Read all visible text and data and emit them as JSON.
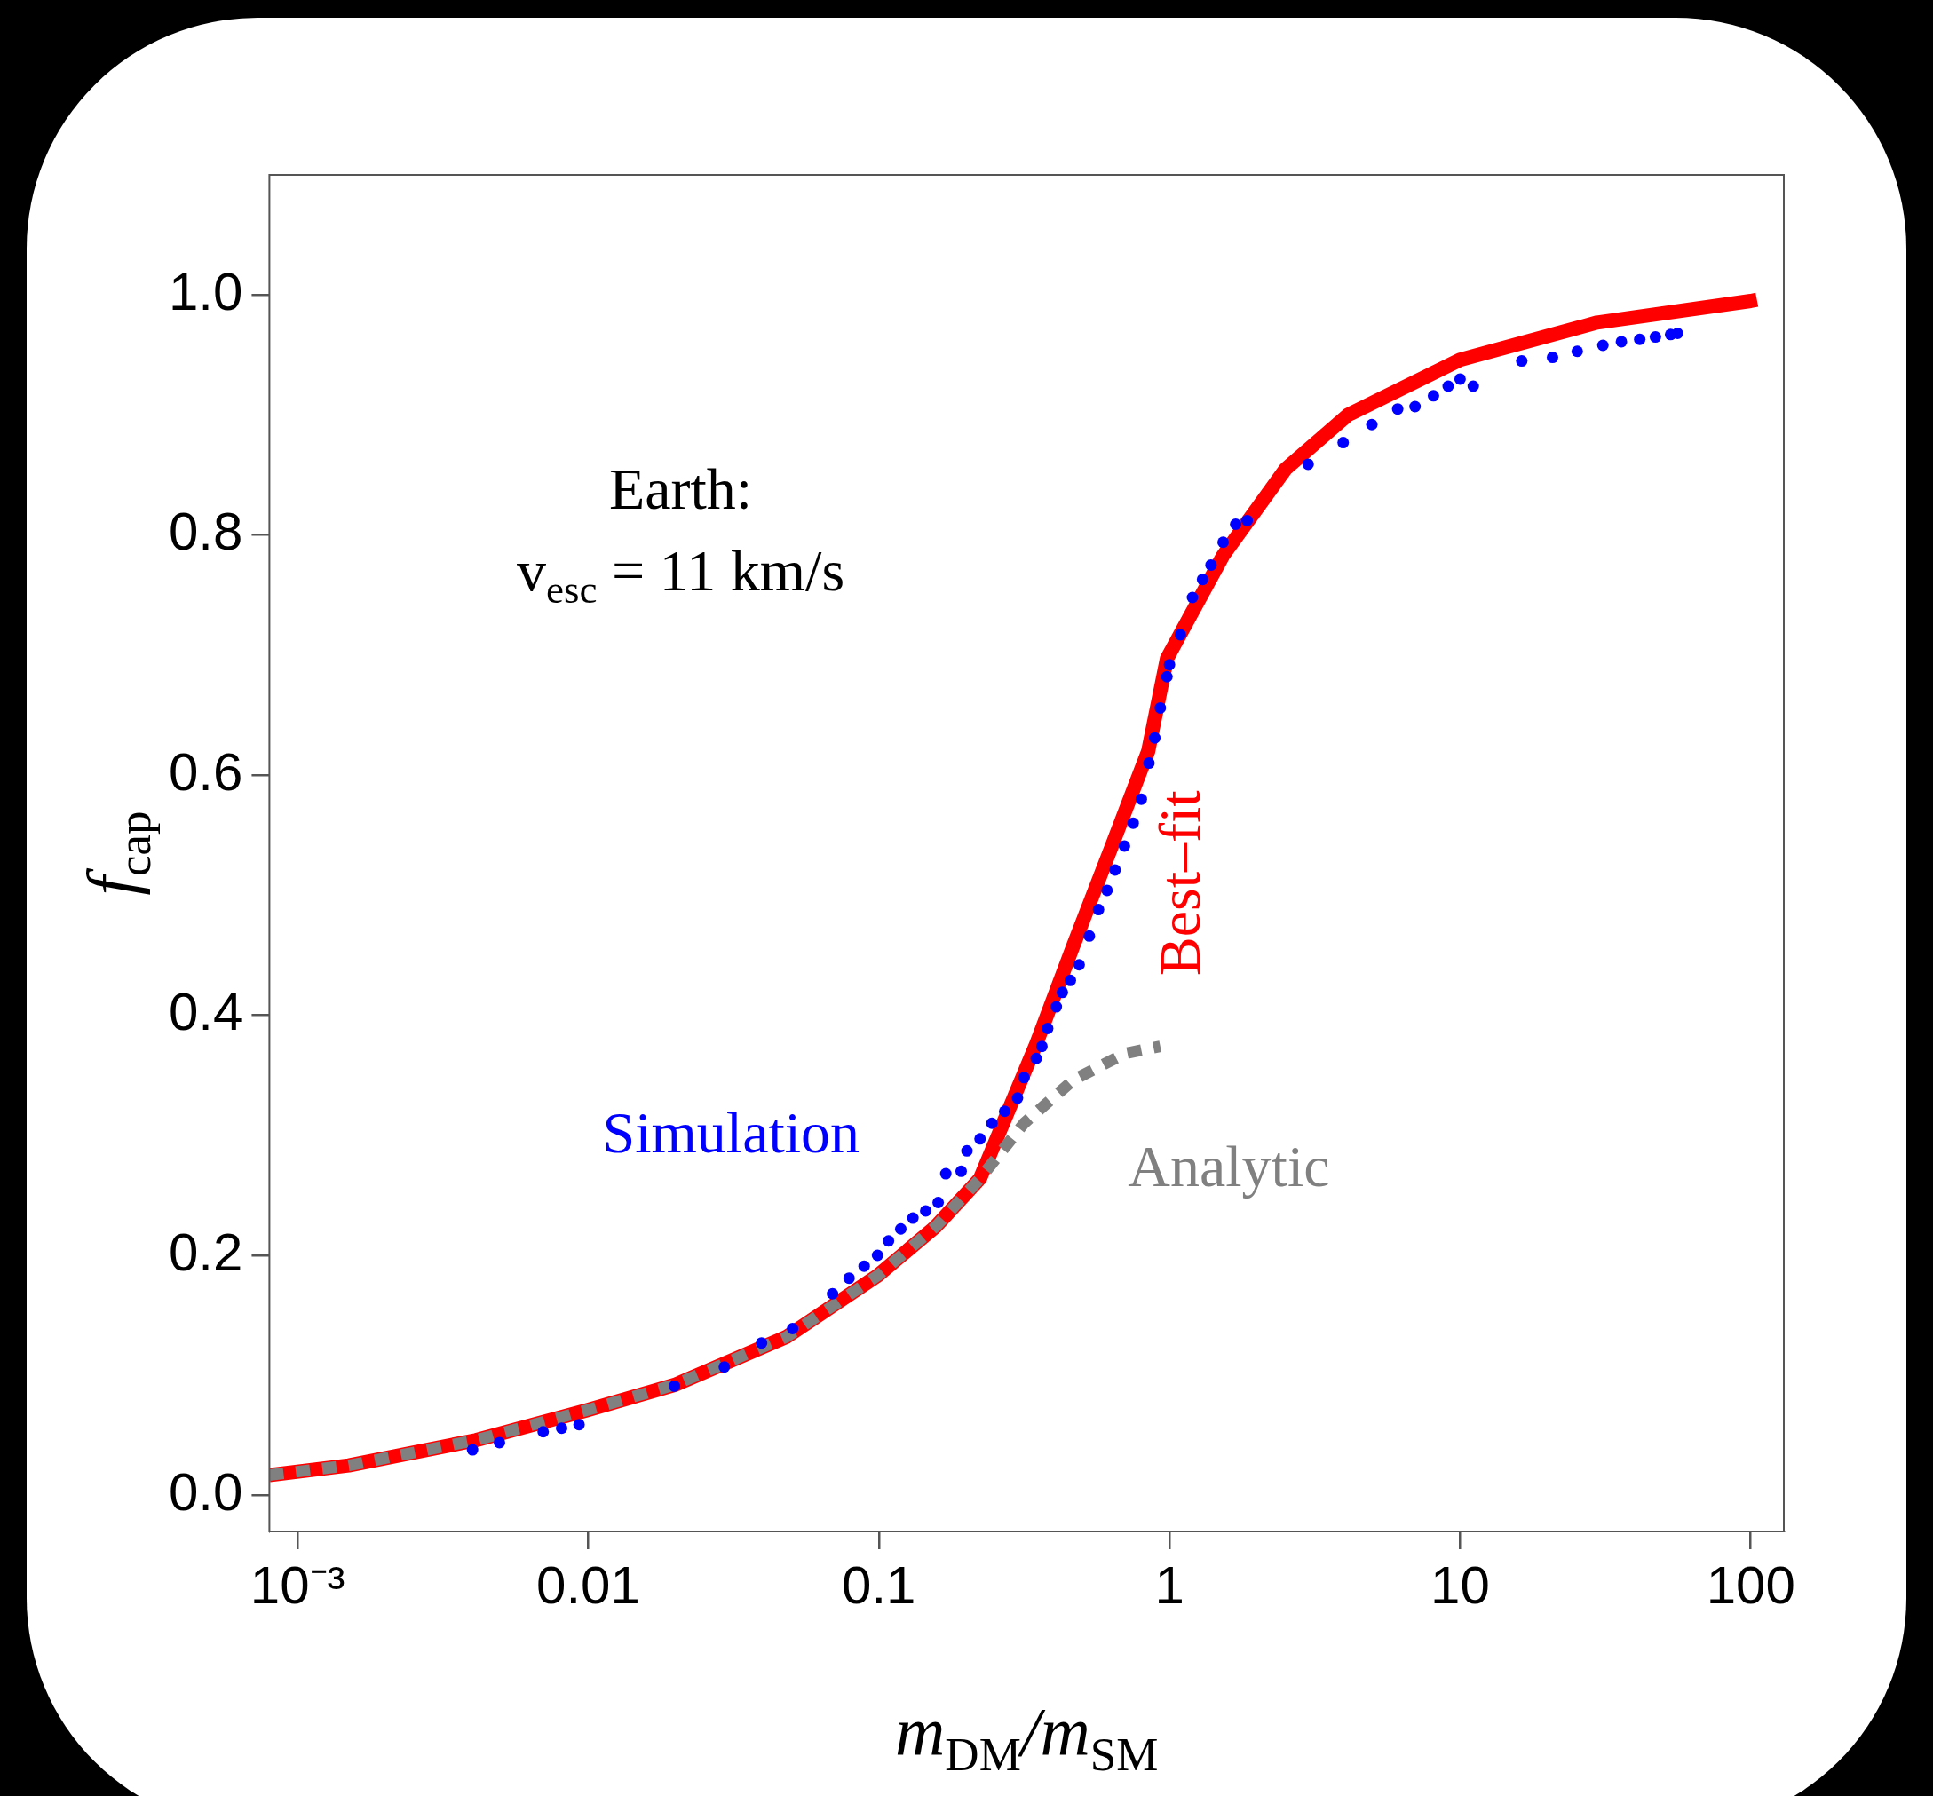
{
  "chart_data": {
    "type": "line",
    "xlabel": "m$_{DM}$/m$_{SM}$",
    "ylabel": "f$_{cap}$",
    "log": "x",
    "grid": false,
    "legend": false,
    "xlim": [
      0.0008,
      130
    ],
    "ylim": [
      -0.03,
      1.1
    ],
    "xticks": [
      {
        "value": 0.001,
        "label": "10⁻³"
      },
      0.01,
      0.1,
      1,
      10,
      100
    ],
    "yticks": [
      {
        "value": 0,
        "label": "0.0"
      },
      0.2,
      0.4,
      0.6,
      0.8,
      {
        "value": 1.0,
        "label": "1.0"
      }
    ],
    "annotations": [
      "Earth:",
      "v$_{esc}$ = 11 km/s"
    ],
    "series": [
      {
        "name": "Best–fit",
        "color": "#ff0000",
        "line_style": "solid",
        "marker": "none",
        "x": [
          0.0008,
          0.0015,
          0.0041,
          0.0099,
          0.0198,
          0.0481,
          0.099,
          0.157,
          0.223,
          0.348,
          0.467,
          0.629,
          0.845,
          0.98,
          1.53,
          2.51,
          4.11,
          10,
          29.6,
          100,
          105
        ],
        "values": [
          0.017,
          0.025,
          0.046,
          0.071,
          0.092,
          0.132,
          0.183,
          0.224,
          0.264,
          0.376,
          0.458,
          0.539,
          0.62,
          0.697,
          0.783,
          0.855,
          0.9,
          0.946,
          0.977,
          0.995,
          0.996
        ]
      },
      {
        "name": "Analytic",
        "color": "#808080",
        "line_style": "dashed",
        "marker": "none",
        "x": [
          0.0008,
          0.0015,
          0.0041,
          0.0099,
          0.0198,
          0.0481,
          0.099,
          0.157,
          0.223,
          0.316,
          0.467,
          0.7,
          0.93
        ],
        "values": [
          0.017,
          0.025,
          0.046,
          0.071,
          0.092,
          0.132,
          0.183,
          0.224,
          0.264,
          0.31,
          0.346,
          0.368,
          0.374
        ]
      },
      {
        "name": "Simulation",
        "type": "scatter",
        "color": "#0000ff",
        "marker": "circle",
        "x": [
          0.004,
          0.00495,
          0.007,
          0.0081,
          0.0093,
          0.0198,
          0.0294,
          0.0395,
          0.0505,
          0.0693,
          0.079,
          0.089,
          0.099,
          0.108,
          0.119,
          0.131,
          0.145,
          0.16,
          0.17,
          0.192,
          0.201,
          0.223,
          0.245,
          0.271,
          0.3,
          0.316,
          0.348,
          0.364,
          0.381,
          0.408,
          0.428,
          0.456,
          0.489,
          0.53,
          0.57,
          0.61,
          0.65,
          0.7,
          0.75,
          0.8,
          0.85,
          0.89,
          0.93,
          0.98,
          1.0,
          1.09,
          1.2,
          1.3,
          1.39,
          1.53,
          1.69,
          1.85,
          3.0,
          3.96,
          4.97,
          6.1,
          7.0,
          8.1,
          9.1,
          10.0,
          11.1,
          16.3,
          20.8,
          25.3,
          31.0,
          35.9,
          41.5,
          47.0,
          53,
          56
        ],
        "values": [
          0.038,
          0.044,
          0.053,
          0.056,
          0.059,
          0.091,
          0.107,
          0.127,
          0.139,
          0.168,
          0.181,
          0.191,
          0.2,
          0.212,
          0.222,
          0.231,
          0.237,
          0.244,
          0.268,
          0.27,
          0.287,
          0.297,
          0.31,
          0.32,
          0.331,
          0.348,
          0.364,
          0.374,
          0.389,
          0.407,
          0.419,
          0.429,
          0.442,
          0.466,
          0.488,
          0.504,
          0.521,
          0.541,
          0.56,
          0.58,
          0.61,
          0.631,
          0.656,
          0.682,
          0.692,
          0.717,
          0.748,
          0.763,
          0.775,
          0.794,
          0.809,
          0.812,
          0.859,
          0.877,
          0.892,
          0.905,
          0.907,
          0.916,
          0.924,
          0.93,
          0.924,
          0.945,
          0.948,
          0.953,
          0.958,
          0.961,
          0.963,
          0.965,
          0.967,
          0.968
        ]
      }
    ]
  }
}
